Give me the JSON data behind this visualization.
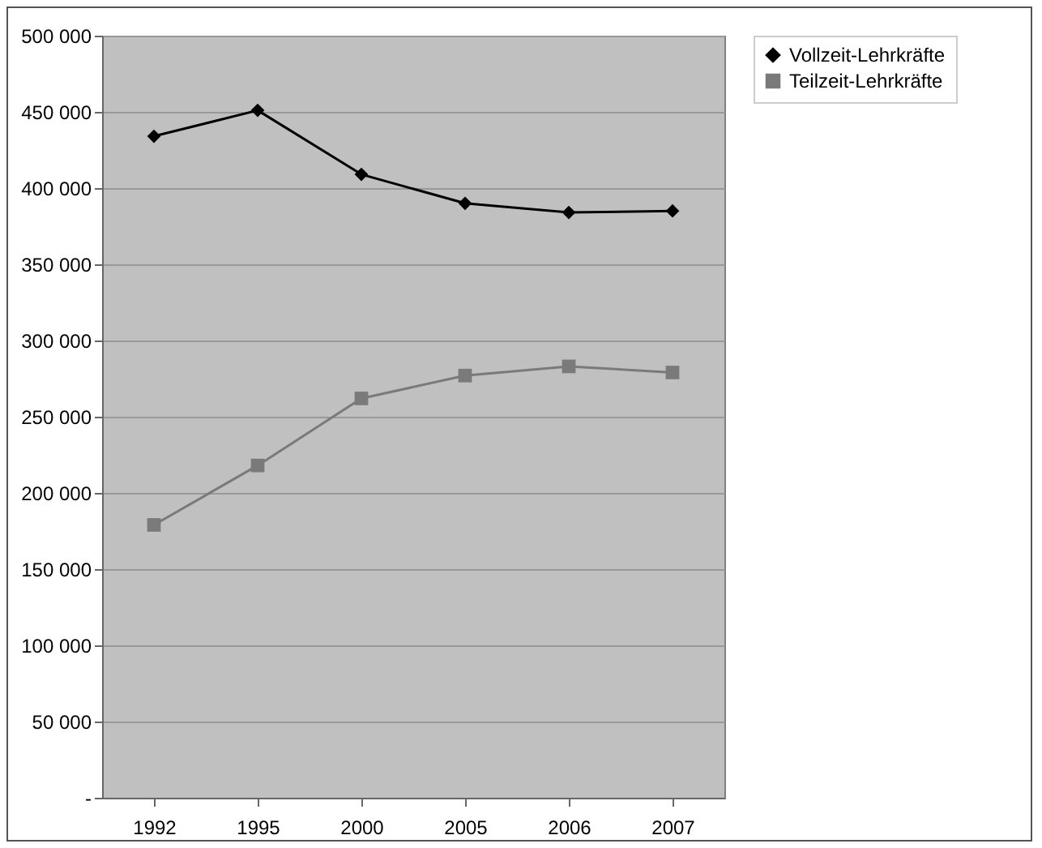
{
  "chart_data": {
    "type": "line",
    "categories": [
      "1992",
      "1995",
      "2000",
      "2005",
      "2006",
      "2007"
    ],
    "series": [
      {
        "name": "Vollzeit-Lehrkräfte",
        "color": "#000000",
        "marker": "diamond",
        "values": [
          434000,
          451000,
          409000,
          390000,
          384000,
          385000
        ]
      },
      {
        "name": "Teilzeit-Lehrkräfte",
        "color": "#7a7a7a",
        "marker": "square",
        "values": [
          179000,
          218000,
          262000,
          277000,
          283000,
          279000
        ]
      }
    ],
    "ylim": [
      0,
      500000
    ],
    "yticks": [
      {
        "value": 0,
        "label": "-"
      },
      {
        "value": 50000,
        "label": "50 000"
      },
      {
        "value": 100000,
        "label": "100 000"
      },
      {
        "value": 150000,
        "label": "150 000"
      },
      {
        "value": 200000,
        "label": "200 000"
      },
      {
        "value": 250000,
        "label": "250 000"
      },
      {
        "value": 300000,
        "label": "300 000"
      },
      {
        "value": 350000,
        "label": "350 000"
      },
      {
        "value": 400000,
        "label": "400 000"
      },
      {
        "value": 450000,
        "label": "450 000"
      },
      {
        "value": 500000,
        "label": "500 000"
      }
    ],
    "grid": "y",
    "legend": "right",
    "line_style": "solid"
  }
}
